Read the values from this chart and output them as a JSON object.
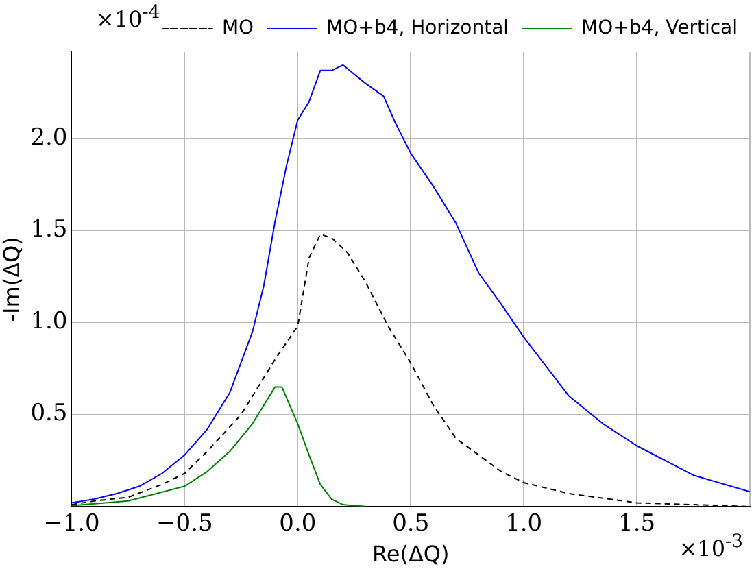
{
  "chart_data": {
    "type": "line",
    "xlabel": "Re(ΔQ)",
    "ylabel": "-Im(ΔQ)",
    "annotations": [
      "×10$^{-4}$",
      "×10$^{-3}$"
    ],
    "xlim": [
      -1.0,
      2.0
    ],
    "ylim": [
      0,
      2.47
    ],
    "xticks": [
      {
        "value": -1.0,
        "label": "−1.0"
      },
      {
        "value": -0.5,
        "label": "−0.5"
      },
      {
        "value": 0,
        "label": "0.0"
      },
      {
        "value": 0.5,
        "label": "0.5"
      },
      {
        "value": 1.0,
        "label": "1.0"
      },
      {
        "value": 1.5,
        "label": "1.5"
      },
      {
        "value": 2.0,
        "label": null
      }
    ],
    "yticks": [
      {
        "value": 0,
        "label": null
      },
      {
        "value": 0.5,
        "label": "0.5"
      },
      {
        "value": 1.0,
        "label": "1.0"
      },
      {
        "value": 1.5,
        "label": "1.5"
      },
      {
        "value": 2.0,
        "label": "2.0"
      }
    ],
    "grid": true,
    "legend": "top right",
    "marker": "none",
    "series": [
      {
        "name": "MO",
        "color": "#000000",
        "line_style": "dashed",
        "x": [
          -1.0,
          -0.9,
          -0.75,
          -0.6,
          -0.5,
          -0.4,
          -0.25,
          -0.1,
          0.0,
          0.05,
          0.1,
          0.15,
          0.22,
          0.3,
          0.4,
          0.5,
          0.6,
          0.7,
          0.8,
          0.9,
          1.0,
          1.2,
          1.5,
          1.75,
          2.0
        ],
        "values": [
          0.01,
          0.03,
          0.05,
          0.12,
          0.18,
          0.3,
          0.5,
          0.8,
          0.98,
          1.35,
          1.48,
          1.46,
          1.38,
          1.22,
          0.98,
          0.78,
          0.55,
          0.37,
          0.28,
          0.19,
          0.13,
          0.07,
          0.02,
          0.01,
          0.0
        ]
      },
      {
        "name": "MO+b4, Horizontal",
        "color": "#0000ff",
        "line_style": "solid",
        "x": [
          -1.0,
          -0.9,
          -0.8,
          -0.7,
          -0.6,
          -0.5,
          -0.4,
          -0.3,
          -0.2,
          -0.15,
          -0.1,
          -0.05,
          0.0,
          0.05,
          0.1,
          0.15,
          0.2,
          0.25,
          0.3,
          0.38,
          0.43,
          0.5,
          0.6,
          0.7,
          0.8,
          0.9,
          1.0,
          1.1,
          1.2,
          1.35,
          1.5,
          1.75,
          2.0
        ],
        "values": [
          0.02,
          0.04,
          0.07,
          0.11,
          0.18,
          0.28,
          0.42,
          0.62,
          0.95,
          1.2,
          1.55,
          1.85,
          2.1,
          2.2,
          2.37,
          2.37,
          2.4,
          2.35,
          2.3,
          2.23,
          2.09,
          1.92,
          1.74,
          1.54,
          1.27,
          1.1,
          0.92,
          0.76,
          0.6,
          0.45,
          0.33,
          0.17,
          0.08
        ]
      },
      {
        "name": "MO+b4, Vertical",
        "color": "#008000",
        "line_style": "solid",
        "x": [
          -1.0,
          -0.75,
          -0.5,
          -0.4,
          -0.3,
          -0.2,
          -0.1,
          -0.07,
          0.0,
          0.05,
          0.1,
          0.15,
          0.2,
          0.3
        ],
        "values": [
          0.005,
          0.03,
          0.11,
          0.19,
          0.3,
          0.45,
          0.65,
          0.65,
          0.45,
          0.28,
          0.12,
          0.04,
          0.01,
          0.0
        ]
      }
    ]
  }
}
